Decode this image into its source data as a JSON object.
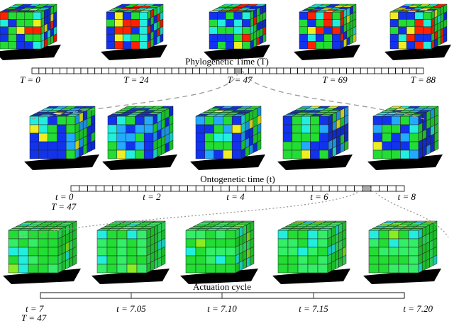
{
  "panels": [
    {
      "title": "Phylogenetic Time (T)",
      "labels": [
        "T = 0",
        "T = 24",
        "T = 47",
        "T = 69",
        "T = 88"
      ]
    },
    {
      "title": "Ontogenetic time (t)",
      "labels": [
        "t = 0",
        "t = 2",
        "t = 4",
        "t = 6",
        "t = 8"
      ],
      "sub_label": "T = 47"
    },
    {
      "title": "Actuation cycle",
      "labels": [
        "t = 7",
        "t = 7.05",
        "t = 7.10",
        "t = 7.15",
        "t = 7.20"
      ],
      "sub_label": "T = 47"
    }
  ]
}
